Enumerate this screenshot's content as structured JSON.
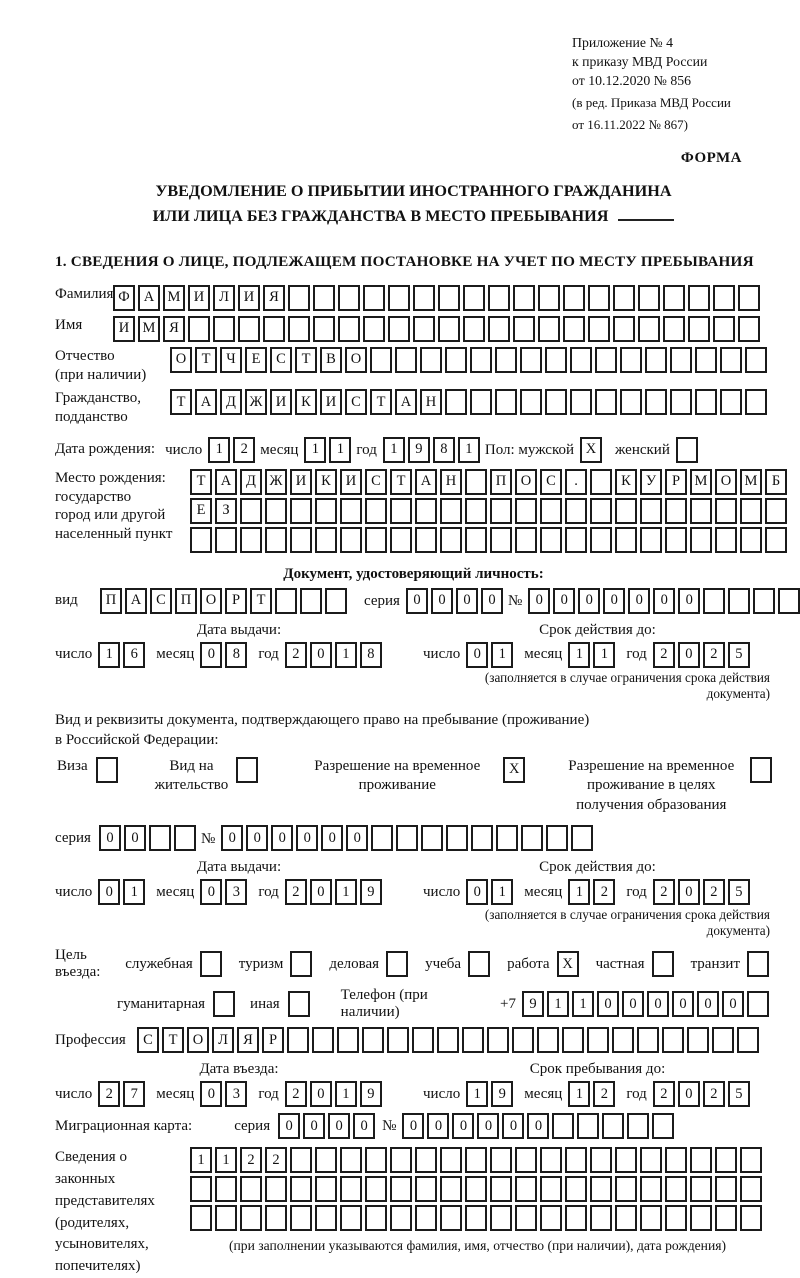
{
  "header": {
    "line1": "Приложение № 4",
    "line2": "к приказу МВД России",
    "line3": "от 10.12.2020 № 856",
    "line4": "(в ред. Приказа МВД России",
    "line5": "от 16.11.2022 № 867)",
    "forma": "ФОРМА"
  },
  "title": {
    "line1": "УВЕДОМЛЕНИЕ О ПРИБЫТИИ ИНОСТРАННОГО ГРАЖДАНИНА",
    "line2": "ИЛИ ЛИЦА БЕЗ ГРАЖДАНСТВА В МЕСТО ПРЕБЫВАНИЯ"
  },
  "section1_heading": "1. СВЕДЕНИЯ О ЛИЦЕ, ПОДЛЕЖАЩЕМ ПОСТАНОВКЕ НА УЧЕТ ПО МЕСТУ ПРЕБЫВАНИЯ",
  "surname": {
    "label": "Фамилия",
    "grid": {
      "chars": "ФАМИЛИЯ",
      "len": 26
    }
  },
  "firstname": {
    "label": "Имя",
    "grid": {
      "chars": "ИМЯ",
      "len": 26
    }
  },
  "patronymic": {
    "label1": "Отчество",
    "label2": "(при наличии)",
    "grid": {
      "chars": "ОТЧЕСТВО",
      "len": 24
    }
  },
  "citizenship": {
    "label1": "Гражданство,",
    "label2": "подданство",
    "grid": {
      "chars": "ТАДЖИКИСТАН",
      "len": 24
    }
  },
  "birthdate": {
    "label": "Дата рождения:",
    "day_label": "число",
    "day": {
      "chars": "12",
      "len": 2
    },
    "month_label": "месяц",
    "month": {
      "chars": "11",
      "len": 2
    },
    "year_label": "год",
    "year": {
      "chars": "1981",
      "len": 4
    },
    "sex_label": "Пол: мужской",
    "male_box": {
      "chars": "X",
      "len": 1
    },
    "female_label": "женский",
    "female_box": {
      "chars": "",
      "len": 1
    }
  },
  "birthplace": {
    "label1": "Место рождения:",
    "label2": "государство",
    "label3": "город или другой",
    "label4": "населенный пункт",
    "row1": {
      "chars": "ТАДЖИКИСТАН ПОС. КУРМОМБ",
      "len": 24
    },
    "row2": {
      "chars": "ЕЗ",
      "len": 24
    },
    "row3": {
      "chars": "",
      "len": 24
    }
  },
  "identity_doc": {
    "heading": "Документ, удостоверяющий личность:",
    "type_label": "вид",
    "type": {
      "chars": "ПАСПОРТ",
      "len": 10
    },
    "series_label": "серия",
    "series": {
      "chars": "0000",
      "len": 4
    },
    "number_label": "№",
    "number": {
      "chars": "0000000",
      "len": 12
    },
    "issue_head": "Дата выдачи:",
    "issue_day_label": "число",
    "issue_day": {
      "chars": "16",
      "len": 2
    },
    "issue_month_label": "месяц",
    "issue_month": {
      "chars": "08",
      "len": 2
    },
    "issue_year_label": "год",
    "issue_year": {
      "chars": "2018",
      "len": 4
    },
    "valid_head": "Срок действия до:",
    "valid_day_label": "число",
    "valid_day": {
      "chars": "01",
      "len": 2
    },
    "valid_month_label": "месяц",
    "valid_month": {
      "chars": "11",
      "len": 2
    },
    "valid_year_label": "год",
    "valid_year": {
      "chars": "2025",
      "len": 4
    },
    "note": "(заполняется в случае ограничения срока действия документа)"
  },
  "residence_doc": {
    "heading1": "Вид и реквизиты документа, подтверждающего право на пребывание (проживание)",
    "heading2": "в Российской Федерации:",
    "types": [
      {
        "label": "Виза",
        "box": {
          "chars": "",
          "len": 1
        }
      },
      {
        "label": "Вид на жительство",
        "box": {
          "chars": "",
          "len": 1
        }
      },
      {
        "label": "Разрешение на временное проживание",
        "box": {
          "chars": "X",
          "len": 1
        }
      },
      {
        "label": "Разрешение на временное проживание в целях получения образования",
        "box": {
          "chars": "",
          "len": 1
        }
      }
    ],
    "series_label": "серия",
    "series": {
      "chars": "00",
      "len": 4
    },
    "number_label": "№",
    "number": {
      "chars": "000000",
      "len": 15
    },
    "issue_head": "Дата выдачи:",
    "issue_day_label": "число",
    "issue_day": {
      "chars": "01",
      "len": 2
    },
    "issue_month_label": "месяц",
    "issue_month": {
      "chars": "03",
      "len": 2
    },
    "issue_year_label": "год",
    "issue_year": {
      "chars": "2019",
      "len": 4
    },
    "valid_head": "Срок действия до:",
    "valid_day_label": "число",
    "valid_day": {
      "chars": "01",
      "len": 2
    },
    "valid_month_label": "месяц",
    "valid_month": {
      "chars": "12",
      "len": 2
    },
    "valid_year_label": "год",
    "valid_year": {
      "chars": "2025",
      "len": 4
    },
    "note": "(заполняется в случае ограничения срока действия документа)"
  },
  "visit": {
    "purpose_label": "Цель въезда:",
    "purposes_row1": [
      {
        "label": "служебная",
        "box": {
          "chars": "",
          "len": 1
        }
      },
      {
        "label": "туризм",
        "box": {
          "chars": "",
          "len": 1
        }
      },
      {
        "label": "деловая",
        "box": {
          "chars": "",
          "len": 1
        }
      },
      {
        "label": "учеба",
        "box": {
          "chars": "",
          "len": 1
        }
      },
      {
        "label": "работа",
        "box": {
          "chars": "X",
          "len": 1
        }
      },
      {
        "label": "частная",
        "box": {
          "chars": "",
          "len": 1
        }
      },
      {
        "label": "транзит",
        "box": {
          "chars": "",
          "len": 1
        }
      }
    ],
    "purposes_row2": [
      {
        "label": "гуманитарная",
        "box": {
          "chars": "",
          "len": 1
        }
      },
      {
        "label": "иная",
        "box": {
          "chars": "",
          "len": 1
        }
      }
    ],
    "phone_label": "Телефон (при наличии)",
    "phone_prefix": "+7",
    "phone": {
      "chars": "911000000",
      "len": 10
    },
    "profession_label": "Профессия",
    "profession": {
      "chars": "СТОЛЯР",
      "len": 25
    }
  },
  "entry": {
    "entry_head": "Дата въезда:",
    "entry_day_label": "число",
    "entry_day": {
      "chars": "27",
      "len": 2
    },
    "entry_month_label": "месяц",
    "entry_month": {
      "chars": "03",
      "len": 2
    },
    "entry_year_label": "год",
    "entry_year": {
      "chars": "2019",
      "len": 4
    },
    "stay_head": "Срок пребывания до:",
    "stay_day_label": "число",
    "stay_day": {
      "chars": "19",
      "len": 2
    },
    "stay_month_label": "месяц",
    "stay_month": {
      "chars": "12",
      "len": 2
    },
    "stay_year_label": "год",
    "stay_year": {
      "chars": "2025",
      "len": 4
    }
  },
  "migration_card": {
    "label": "Миграционная карта:",
    "series_label": "серия",
    "series": {
      "chars": "0000",
      "len": 4
    },
    "number_label": "№",
    "number": {
      "chars": "000000",
      "len": 11
    }
  },
  "representatives": {
    "label1": "Сведения о",
    "label2": "законных",
    "label3": "представителях",
    "label4": "(родителях,",
    "label5": "усыновителях,",
    "label6": "попечителях)",
    "row1": {
      "chars": "1122",
      "len": 23
    },
    "row2": {
      "chars": "",
      "len": 23
    },
    "row3": {
      "chars": "",
      "len": 23
    },
    "note": "(при заполнении указываются фамилия, имя, отчество (при наличии), дата рождения)"
  }
}
